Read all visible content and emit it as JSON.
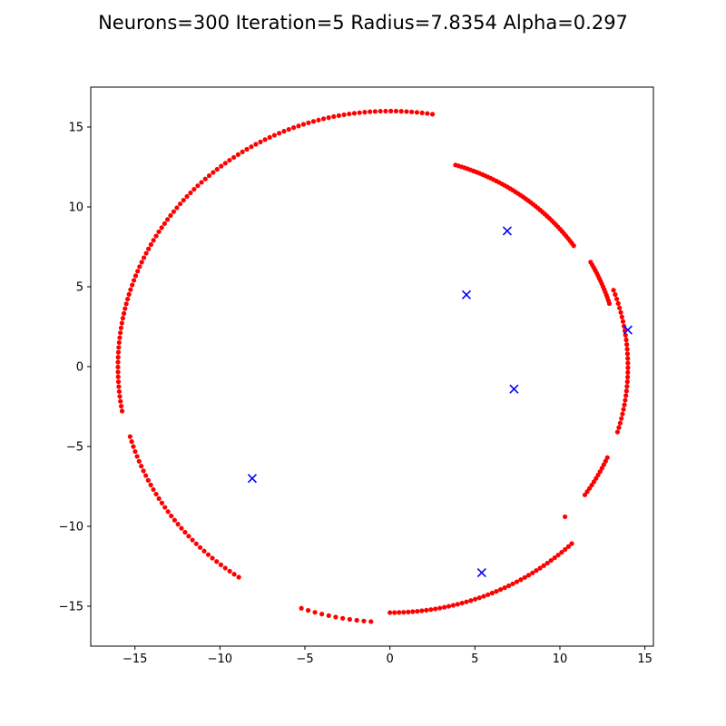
{
  "chart_data": {
    "type": "scatter",
    "title": "Neurons=300 Iteration=5 Radius=7.8354 Alpha=0.297",
    "xlabel": "",
    "ylabel": "",
    "xlim": [
      -17.6,
      15.5
    ],
    "ylim": [
      -17.5,
      17.5
    ],
    "xticks": [
      -15,
      -10,
      -5,
      0,
      5,
      10,
      15
    ],
    "yticks": [
      -15,
      -10,
      -5,
      0,
      5,
      10,
      15
    ],
    "xtick_labels": [
      "−15",
      "−10",
      "−5",
      "0",
      "5",
      "10",
      "15"
    ],
    "ytick_labels": [
      "−15",
      "−10",
      "−5",
      "0",
      "5",
      "10",
      "15"
    ],
    "grid": false,
    "series": [
      {
        "marker": "dot",
        "color": "#ff0000",
        "arcs": [
          {
            "cx": 0,
            "cy": 0,
            "r": 16.0,
            "a0": 81,
            "a1": 190,
            "n": 100
          },
          {
            "cx": 0,
            "cy": 0,
            "r": 15.9,
            "a0": 196,
            "a1": 236,
            "n": 35
          },
          {
            "cx": 0,
            "cy": 0,
            "r": 16.0,
            "a0": 251,
            "a1": 266,
            "n": 11
          },
          {
            "cx": 0,
            "cy": 0,
            "r": 15.4,
            "a0": 270,
            "a1": 314,
            "n": 45
          },
          {
            "cx": 0,
            "cy": 0,
            "r": 13.2,
            "a0": 35,
            "a1": 73,
            "n": 48
          },
          {
            "cx": 0,
            "cy": 0,
            "r": 13.5,
            "a0": 17,
            "a1": 29,
            "n": 16
          },
          {
            "cx": 0,
            "cy": 0,
            "r": 14.0,
            "a0": -17,
            "a1": 20,
            "n": 32
          },
          {
            "cx": 0,
            "cy": 0,
            "r": 14.0,
            "a0": -35,
            "a1": -24,
            "n": 12
          }
        ],
        "points": [
          [
            10.3,
            -9.4
          ]
        ]
      },
      {
        "marker": "x",
        "color": "#0000ff",
        "points": [
          [
            6.9,
            8.5
          ],
          [
            4.5,
            4.5
          ],
          [
            14.0,
            2.3
          ],
          [
            7.3,
            -1.4
          ],
          [
            -8.1,
            -7.0
          ],
          [
            5.4,
            -12.9
          ]
        ]
      }
    ]
  }
}
